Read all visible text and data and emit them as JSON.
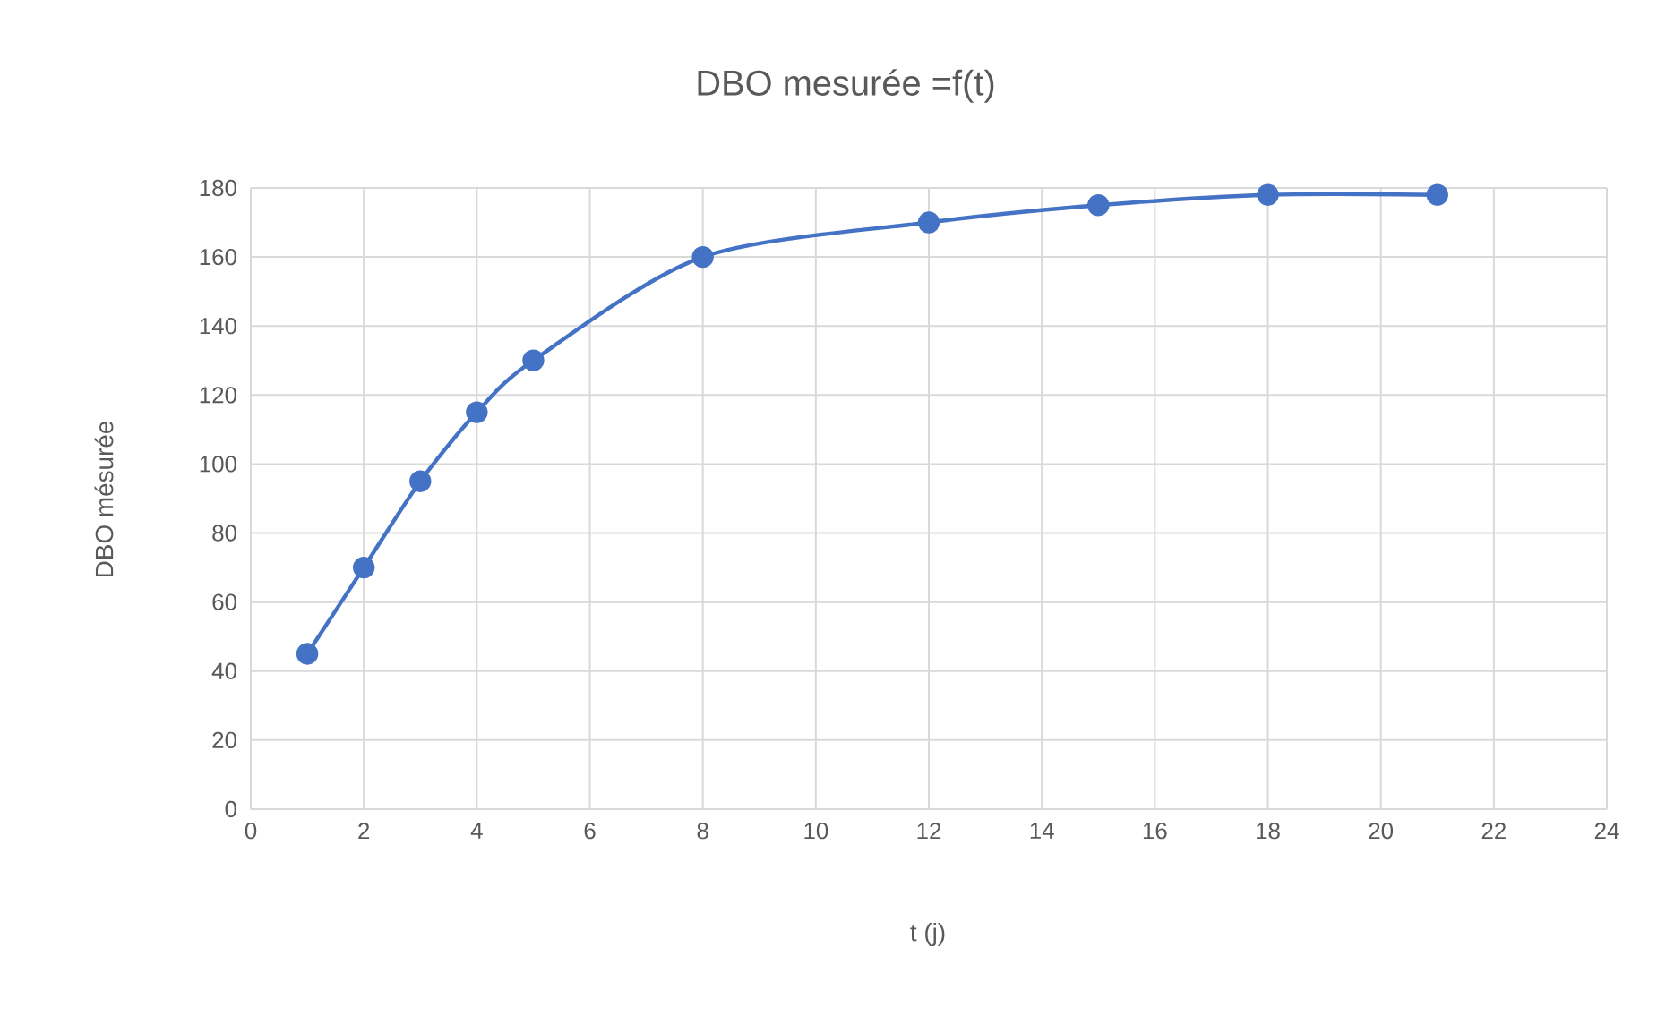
{
  "chart_data": {
    "type": "line",
    "title": "DBO mesurée =f(t)",
    "xlabel": "t (j)",
    "ylabel": "DBO mésurée",
    "series": [
      {
        "color": "#4472c4",
        "x": [
          1,
          2,
          3,
          4,
          5,
          8,
          12,
          15,
          18,
          21
        ],
        "values": [
          45,
          70,
          95,
          115,
          130,
          160,
          170,
          175,
          178,
          178
        ]
      }
    ],
    "xlim": [
      0,
      24
    ],
    "xticks": [
      0,
      2,
      4,
      6,
      8,
      10,
      12,
      14,
      16,
      18,
      20,
      22,
      24
    ],
    "ylim": [
      0,
      180
    ],
    "yticks": [
      0,
      20,
      40,
      60,
      80,
      100,
      120,
      140,
      160,
      180
    ],
    "grid": true,
    "marker": "circle",
    "line_style": "solid"
  }
}
